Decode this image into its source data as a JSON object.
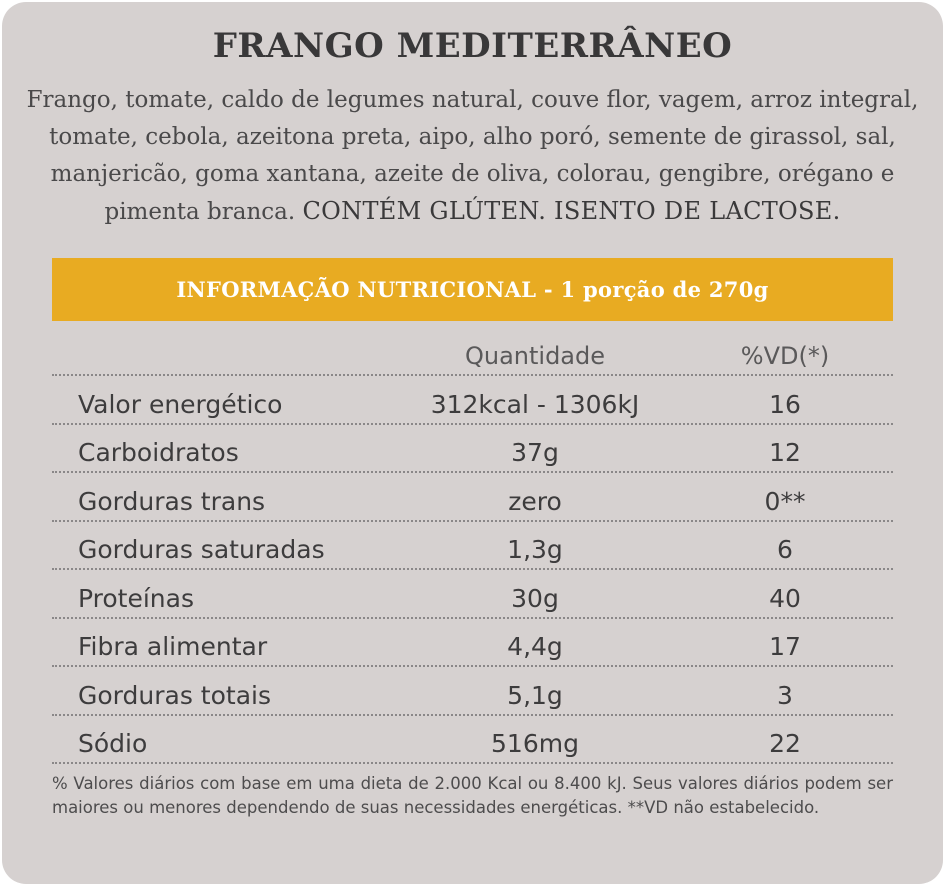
{
  "product": {
    "title": "FRANGO MEDITERRÂNEO",
    "ingredients": "Frango, tomate, caldo de legumes natural, couve flor, vagem, arroz integral, tomate, cebola, azeitona preta, aipo, alho poró, semente de girassol, sal, manjericão, goma xantana, azeite de oliva, colorau, gengibre, orégano e pimenta branca.",
    "allergen_warning": "CONTÉM GLÚTEN. ISENTO DE LACTOSE."
  },
  "nutrition": {
    "banner": "INFORMAÇÃO NUTRICIONAL - 1 porção de 270g",
    "col_qty": "Quantidade",
    "col_vd": "%VD(*)",
    "rows": [
      {
        "name": "Valor energético",
        "qty": "312kcal - 1306kJ",
        "vd": "16"
      },
      {
        "name": "Carboidratos",
        "qty": "37g",
        "vd": "12"
      },
      {
        "name": "Gorduras trans",
        "qty": "zero",
        "vd": "0**"
      },
      {
        "name": "Gorduras saturadas",
        "qty": "1,3g",
        "vd": "6"
      },
      {
        "name": "Proteínas",
        "qty": "30g",
        "vd": "40"
      },
      {
        "name": "Fibra alimentar",
        "qty": "4,4g",
        "vd": "17"
      },
      {
        "name": "Gorduras totais",
        "qty": "5,1g",
        "vd": "3"
      },
      {
        "name": "Sódio",
        "qty": "516mg",
        "vd": "22"
      }
    ],
    "footnote": "% Valores diários com base em uma dieta de 2.000 Kcal ou 8.400 kJ. Seus valores diários podem ser maiores ou menores dependendo de suas necessidades energéticas. **VD não estabelecido."
  },
  "colors": {
    "background": "#d6d1d0",
    "banner": "#e8ab22",
    "text": "#3d3c3d"
  }
}
